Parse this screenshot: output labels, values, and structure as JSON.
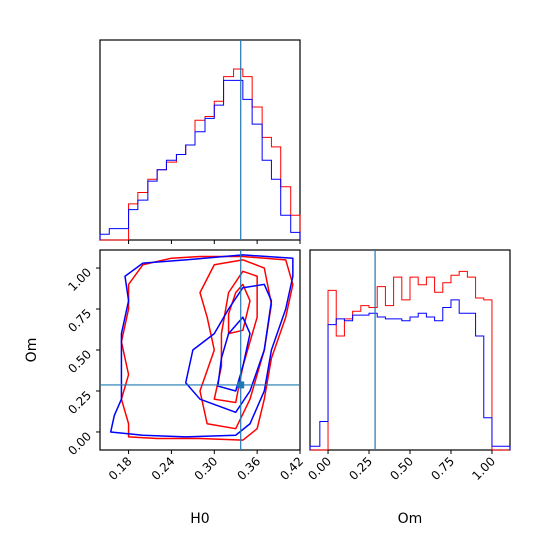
{
  "chart_data": {
    "type": "corner",
    "parameters": [
      "H0",
      "Om"
    ],
    "truths": {
      "H0": 0.337,
      "Om": 0.287
    },
    "truth_color": "#1f77b4",
    "series_colors": [
      "#ff0000",
      "#0000ff"
    ],
    "panels": [
      {
        "id": "H0-marginal",
        "type": "histogram",
        "x_range": [
          0.14,
          0.42
        ],
        "bins": [
          0.14,
          0.153,
          0.167,
          0.18,
          0.193,
          0.207,
          0.22,
          0.233,
          0.247,
          0.26,
          0.273,
          0.287,
          0.3,
          0.313,
          0.327,
          0.34,
          0.353,
          0.367,
          0.38,
          0.393,
          0.407,
          0.42
        ],
        "series": [
          {
            "color": "#ff0000",
            "values": [
              0,
              0,
              0,
              0.19,
              0.25,
              0.32,
              0.37,
              0.41,
              0.45,
              0.5,
              0.63,
              0.65,
              0.73,
              0.86,
              0.9,
              0.86,
              0.7,
              0.54,
              0.49,
              0.28,
              0.13
            ]
          },
          {
            "color": "#0000ff",
            "values": [
              0.03,
              0.06,
              0.06,
              0.16,
              0.21,
              0.31,
              0.37,
              0.42,
              0.45,
              0.5,
              0.57,
              0.64,
              0.71,
              0.84,
              0.84,
              0.74,
              0.61,
              0.42,
              0.32,
              0.13,
              0.04
            ]
          }
        ]
      },
      {
        "id": "Om-marginal",
        "type": "histogram",
        "x_range": [
          -0.11,
          1.11
        ],
        "bins": [
          -0.11,
          -0.05,
          0,
          0.05,
          0.1,
          0.15,
          0.2,
          0.25,
          0.3,
          0.35,
          0.4,
          0.45,
          0.5,
          0.55,
          0.6,
          0.65,
          0.7,
          0.75,
          0.8,
          0.85,
          0.9,
          0.95,
          1.0,
          1.05,
          1.11
        ],
        "series": [
          {
            "color": "#ff0000",
            "values": [
              0,
              0,
              0.84,
              0.6,
              0.69,
              0.73,
              0.76,
              0.75,
              0.86,
              0.76,
              0.91,
              0.79,
              0.91,
              0.87,
              0.91,
              0.83,
              0.88,
              0.92,
              0.94,
              0.91,
              0.8,
              0.79,
              0,
              0
            ]
          },
          {
            "color": "#0000ff",
            "values": [
              0.02,
              0.15,
              0.66,
              0.69,
              0.68,
              0.71,
              0.71,
              0.72,
              0.7,
              0.69,
              0.69,
              0.68,
              0.7,
              0.72,
              0.7,
              0.68,
              0.75,
              0.79,
              0.72,
              0.72,
              0.6,
              0.17,
              0.02,
              0.02
            ]
          }
        ]
      },
      {
        "id": "H0-Om-2d",
        "type": "contour",
        "x_range": [
          0.14,
          0.42
        ],
        "y_range": [
          -0.11,
          1.11
        ],
        "xlabel": "H0",
        "ylabel": "Om",
        "contours": [
          {
            "color": "#ff0000",
            "points": [
              [
                0.18,
                -0.03
              ],
              [
                0.22,
                -0.04
              ],
              [
                0.28,
                -0.04
              ],
              [
                0.34,
                -0.05
              ],
              [
                0.36,
                0.02
              ],
              [
                0.37,
                0.2
              ],
              [
                0.38,
                0.45
              ],
              [
                0.4,
                0.7
              ],
              [
                0.41,
                0.9
              ],
              [
                0.4,
                1.05
              ],
              [
                0.34,
                1.07
              ],
              [
                0.28,
                1.07
              ],
              [
                0.24,
                1.06
              ],
              [
                0.2,
                1.02
              ],
              [
                0.18,
                0.9
              ],
              [
                0.18,
                0.75
              ],
              [
                0.17,
                0.55
              ],
              [
                0.18,
                0.35
              ],
              [
                0.17,
                0.2
              ],
              [
                0.18,
                0.05
              ]
            ]
          },
          {
            "color": "#ff0000",
            "points": [
              [
                0.29,
                0.05
              ],
              [
                0.33,
                0.02
              ],
              [
                0.35,
                0.2
              ],
              [
                0.37,
                0.5
              ],
              [
                0.38,
                0.78
              ],
              [
                0.37,
                1.0
              ],
              [
                0.34,
                1.05
              ],
              [
                0.3,
                1.02
              ],
              [
                0.28,
                0.85
              ],
              [
                0.29,
                0.7
              ],
              [
                0.3,
                0.5
              ],
              [
                0.28,
                0.25
              ]
            ]
          },
          {
            "color": "#ff0000",
            "points": [
              [
                0.3,
                0.2
              ],
              [
                0.33,
                0.18
              ],
              [
                0.34,
                0.4
              ],
              [
                0.36,
                0.7
              ],
              [
                0.36,
                0.95
              ],
              [
                0.34,
                0.98
              ],
              [
                0.32,
                0.85
              ],
              [
                0.31,
                0.6
              ],
              [
                0.31,
                0.4
              ]
            ]
          },
          {
            "color": "#ff0000",
            "points": [
              [
                0.32,
                0.6
              ],
              [
                0.34,
                0.62
              ],
              [
                0.35,
                0.8
              ],
              [
                0.34,
                0.9
              ],
              [
                0.33,
                0.85
              ],
              [
                0.32,
                0.72
              ]
            ]
          },
          {
            "color": "#0000ff",
            "points": [
              [
                0.155,
                0.0
              ],
              [
                0.2,
                -0.02
              ],
              [
                0.26,
                -0.03
              ],
              [
                0.33,
                -0.02
              ],
              [
                0.35,
                0.05
              ],
              [
                0.37,
                0.25
              ],
              [
                0.38,
                0.5
              ],
              [
                0.4,
                0.75
              ],
              [
                0.41,
                0.95
              ],
              [
                0.41,
                1.06
              ],
              [
                0.34,
                1.08
              ],
              [
                0.26,
                1.05
              ],
              [
                0.2,
                1.03
              ],
              [
                0.175,
                0.95
              ],
              [
                0.18,
                0.8
              ],
              [
                0.17,
                0.6
              ],
              [
                0.17,
                0.4
              ],
              [
                0.17,
                0.2
              ],
              [
                0.16,
                0.1
              ]
            ]
          },
          {
            "color": "#0000ff",
            "points": [
              [
                0.28,
                0.2
              ],
              [
                0.33,
                0.12
              ],
              [
                0.35,
                0.25
              ],
              [
                0.37,
                0.5
              ],
              [
                0.38,
                0.8
              ],
              [
                0.37,
                0.9
              ],
              [
                0.34,
                0.88
              ],
              [
                0.32,
                0.75
              ],
              [
                0.3,
                0.6
              ],
              [
                0.27,
                0.5
              ],
              [
                0.26,
                0.3
              ]
            ]
          },
          {
            "color": "#0000ff",
            "points": [
              [
                0.305,
                0.28
              ],
              [
                0.33,
                0.25
              ],
              [
                0.34,
                0.4
              ],
              [
                0.35,
                0.6
              ],
              [
                0.34,
                0.7
              ],
              [
                0.32,
                0.6
              ],
              [
                0.31,
                0.45
              ]
            ]
          }
        ]
      }
    ],
    "x_ticks_H0": [
      "0.18",
      "0.24",
      "0.30",
      "0.36",
      "0.42"
    ],
    "y_ticks_Om": [
      "0.00",
      "0.25",
      "0.50",
      "0.75",
      "1.00"
    ],
    "x_ticks_Om": [
      "0.00",
      "0.25",
      "0.50",
      "0.75",
      "1.00"
    ],
    "grid": false,
    "legend": "none"
  }
}
